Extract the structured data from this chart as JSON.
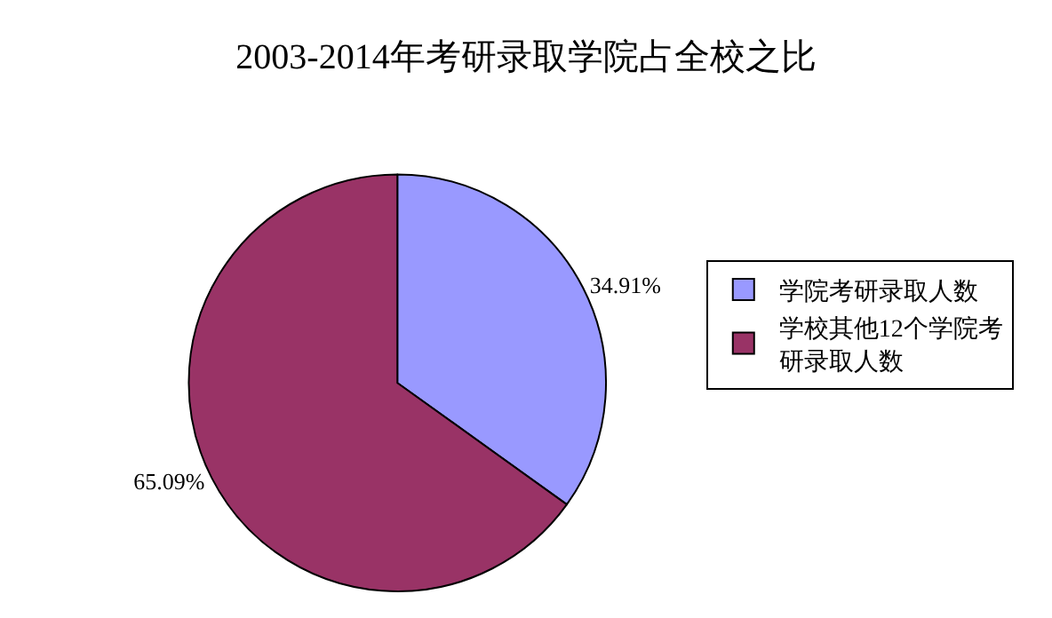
{
  "chart_data": {
    "type": "pie",
    "title": "2003-2014年考研录取学院占全校之比",
    "categories": [
      "学院考研录取人数",
      "学校其他12个学院考研录取人数"
    ],
    "values": [
      34.91,
      65.09
    ],
    "value_labels": [
      "34.91%",
      "65.09%"
    ],
    "colors": [
      "#9999ff",
      "#993366"
    ],
    "legend": "right"
  }
}
